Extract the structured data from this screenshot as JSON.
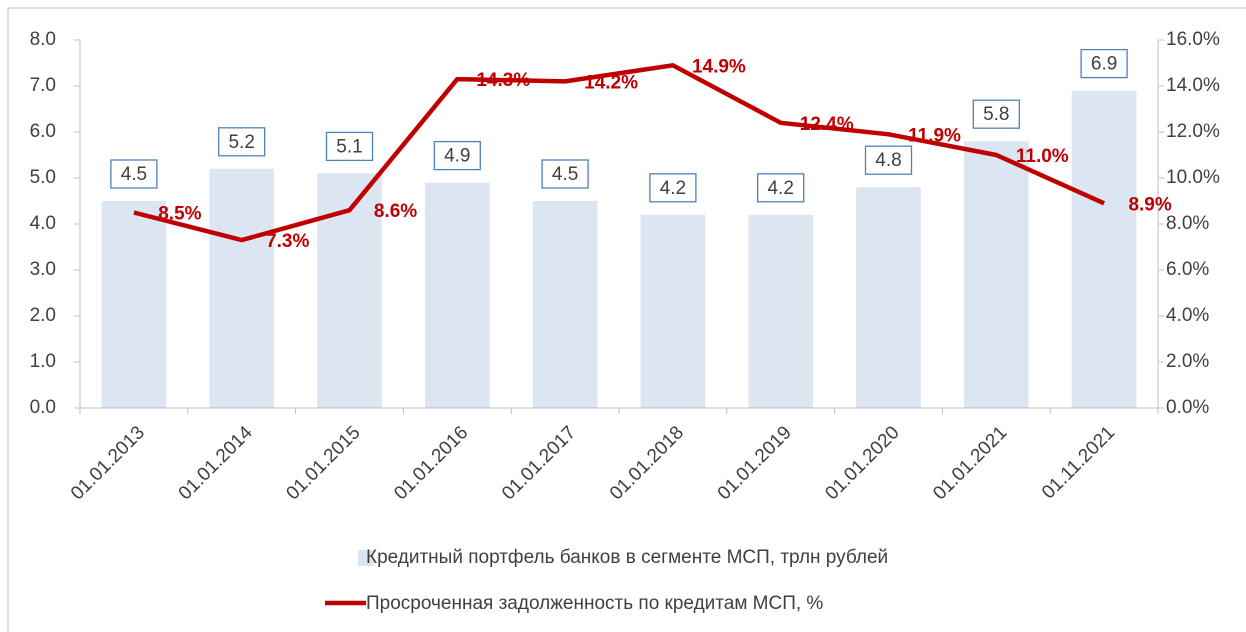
{
  "chart_data": {
    "type": "bar-line",
    "categories": [
      "01.01.2013",
      "01.01.2014",
      "01.01.2015",
      "01.01.2016",
      "01.01.2017",
      "01.01.2018",
      "01.01.2019",
      "01.01.2020",
      "01.01.2021",
      "01.11.2021"
    ],
    "series": [
      {
        "name": "Кредитный портфель банков в сегменте МСП, трлн рублей",
        "color": "#dce6f2",
        "type": "bar",
        "values": [
          4.5,
          5.2,
          5.1,
          4.9,
          4.5,
          4.2,
          4.2,
          4.8,
          5.8,
          6.9
        ]
      },
      {
        "name": "Просроченная задолженность по кредитам МСП, %",
        "color": "#c00000",
        "type": "line",
        "axis": "y2",
        "values": [
          8.5,
          7.3,
          8.6,
          14.3,
          14.2,
          14.9,
          12.4,
          11.9,
          11.0,
          8.9
        ],
        "value_labels": [
          "8.5%",
          "7.3%",
          "8.6%",
          "14.3%",
          "14.2%",
          "14.9%",
          "12.4%",
          "11.9%",
          "11.0%",
          "8.9%"
        ]
      }
    ],
    "ylim": [
      0,
      8
    ],
    "yticks": [
      {
        "value": 0,
        "label": "0.0"
      },
      {
        "value": 1,
        "label": "1.0"
      },
      {
        "value": 2,
        "label": "2.0"
      },
      {
        "value": 3,
        "label": "3.0"
      },
      {
        "value": 4,
        "label": "4.0"
      },
      {
        "value": 5,
        "label": "5.0"
      },
      {
        "value": 6,
        "label": "6.0"
      },
      {
        "value": 7,
        "label": "7.0"
      },
      {
        "value": 8,
        "label": "8.0"
      }
    ],
    "y2lim": [
      0,
      16
    ],
    "y2ticks": [
      {
        "value": 0,
        "label": "0.0%"
      },
      {
        "value": 2,
        "label": "2.0%"
      },
      {
        "value": 4,
        "label": "4.0%"
      },
      {
        "value": 6,
        "label": "6.0%"
      },
      {
        "value": 8,
        "label": "8.0%"
      },
      {
        "value": 10,
        "label": "10.0%"
      },
      {
        "value": 12,
        "label": "12.0%"
      },
      {
        "value": 14,
        "label": "14.0%"
      },
      {
        "value": 16,
        "label": "16.0%"
      }
    ],
    "legend": "bottom"
  }
}
